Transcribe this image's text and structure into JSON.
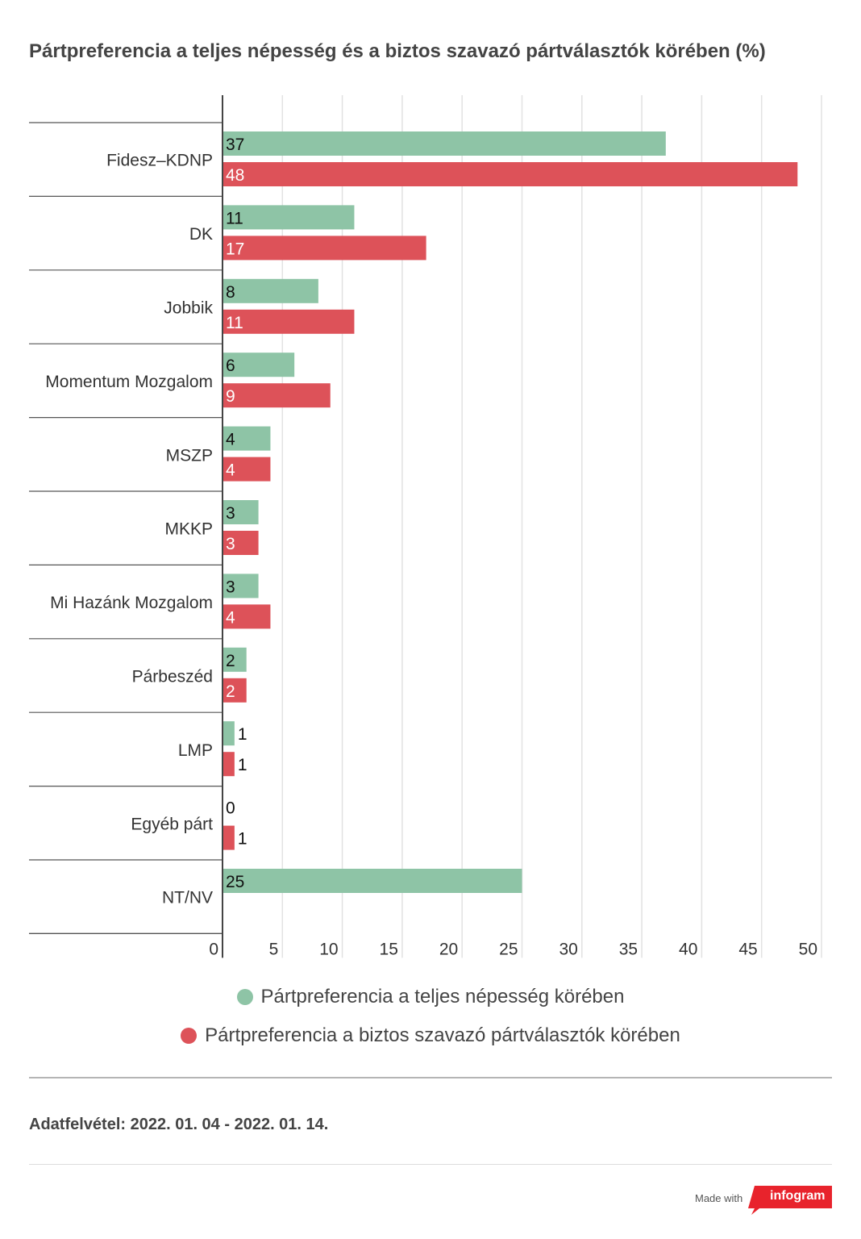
{
  "title": "Pártpreferencia a teljes népesség és a biztos szavazó pártválasztók körében (%)",
  "chart_data": {
    "type": "bar",
    "orientation": "horizontal",
    "categories": [
      "Fidesz–KDNP",
      "DK",
      "Jobbik",
      "Momentum Mozgalom",
      "MSZP",
      "MKKP",
      "Mi Hazánk Mozgalom",
      "Párbeszéd",
      "LMP",
      "Egyéb párt",
      "NT/NV"
    ],
    "series": [
      {
        "name": "Pártpreferencia a teljes népesség körében",
        "color": "#8ec4a6",
        "values": [
          37,
          11,
          8,
          6,
          4,
          3,
          3,
          2,
          1,
          0,
          25
        ]
      },
      {
        "name": "Pártpreferencia a biztos szavazó pártválasztók körében",
        "color": "#dd5259",
        "values": [
          48,
          17,
          11,
          9,
          4,
          3,
          4,
          2,
          1,
          1,
          null
        ]
      }
    ],
    "xlim": [
      0,
      50
    ],
    "x_ticks": [
      0,
      5,
      10,
      15,
      20,
      25,
      30,
      35,
      40,
      45,
      50
    ],
    "grid": true,
    "legend_position": "bottom"
  },
  "legend": {
    "series1": "Pártpreferencia a teljes népesség körében",
    "series2": "Pártpreferencia a biztos szavazó pártválasztók körében"
  },
  "footer": {
    "note": "Adatfelvétel:  2022. 01. 04 - 2022. 01. 14.",
    "made_with": "Made with",
    "brand": "infogram"
  }
}
